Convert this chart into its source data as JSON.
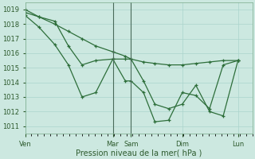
{
  "background_color": "#cce8e0",
  "grid_color": "#aad4cc",
  "line_color": "#2d6e3a",
  "marker": "+",
  "xlabel": "Pression niveau de la mer( hPa )",
  "ylim": [
    1010.5,
    1019.5
  ],
  "yticks": [
    1011,
    1012,
    1013,
    1014,
    1015,
    1016,
    1017,
    1018,
    1019
  ],
  "day_labels": [
    "Ven",
    "Mar",
    "Sam",
    "Dim",
    "Lun"
  ],
  "day_positions": [
    0.0,
    0.385,
    0.465,
    0.69,
    0.935
  ],
  "xlim": [
    0.0,
    1.0
  ],
  "series": [
    {
      "x": [
        0.0,
        0.06,
        0.13,
        0.19,
        0.25,
        0.31,
        0.385,
        0.44,
        0.465,
        0.52,
        0.57,
        0.63,
        0.69,
        0.75,
        0.81,
        0.87,
        0.935
      ],
      "y": [
        1019.0,
        1018.5,
        1018.0,
        1017.5,
        1017.0,
        1016.5,
        1016.1,
        1015.8,
        1015.6,
        1015.4,
        1015.3,
        1015.2,
        1015.2,
        1015.3,
        1015.4,
        1015.5,
        1015.5
      ]
    },
    {
      "x": [
        0.0,
        0.06,
        0.13,
        0.19,
        0.25,
        0.31,
        0.385,
        0.44,
        0.465,
        0.52,
        0.57,
        0.63,
        0.69,
        0.75,
        0.81,
        0.87,
        0.935
      ],
      "y": [
        1018.8,
        1018.5,
        1018.2,
        1016.5,
        1015.2,
        1015.5,
        1015.6,
        1014.1,
        1014.1,
        1013.3,
        1011.3,
        1011.4,
        1013.3,
        1013.1,
        1012.2,
        1015.2,
        1015.5
      ]
    },
    {
      "x": [
        0.0,
        0.06,
        0.13,
        0.19,
        0.25,
        0.31,
        0.385,
        0.44,
        0.465,
        0.52,
        0.57,
        0.63,
        0.69,
        0.75,
        0.81,
        0.87,
        0.935
      ],
      "y": [
        1018.6,
        1017.8,
        1016.6,
        1015.2,
        1013.0,
        1013.3,
        1015.6,
        1015.6,
        1015.6,
        1014.1,
        1012.5,
        1012.2,
        1012.5,
        1013.8,
        1012.0,
        1011.7,
        1015.5
      ]
    }
  ]
}
